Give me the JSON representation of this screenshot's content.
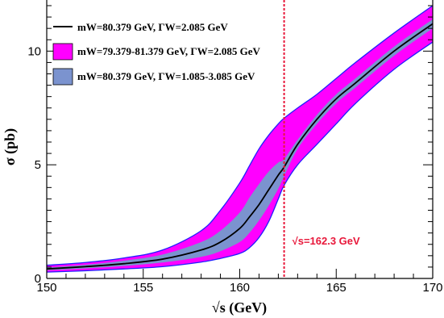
{
  "chart_data": {
    "type": "line",
    "xlabel": "√s (GeV)",
    "ylabel": "σ (pb)",
    "xlim": [
      150,
      170
    ],
    "ylim": [
      0,
      12
    ],
    "x_ticks": [
      150,
      155,
      160,
      165,
      170
    ],
    "y_ticks": [
      0,
      5,
      10
    ],
    "grid": false,
    "legend_position": "top-left",
    "colors": {
      "central_line": "#000000",
      "mass_band": "#ff00ff",
      "width_band": "#7b93cf",
      "band_edge": "#1f1fff",
      "annotation": "#e8173a"
    },
    "x": [
      150,
      152,
      154,
      156,
      158,
      159,
      160,
      160.5,
      161,
      161.5,
      162,
      162.3,
      163,
      164,
      165,
      166,
      168,
      170
    ],
    "series": [
      {
        "name": "mW=80.379 GeV,  ΓW=2.085 GeV",
        "values": [
          0.42,
          0.52,
          0.65,
          0.85,
          1.25,
          1.6,
          2.2,
          2.7,
          3.25,
          3.9,
          4.55,
          4.9,
          5.9,
          7.0,
          7.9,
          8.6,
          10.0,
          11.2
        ]
      },
      {
        "name": "mW=79.379-81.379 GeV,  ΓW=2.085 GeV (upper)",
        "values": [
          0.58,
          0.7,
          0.9,
          1.25,
          2.1,
          3.0,
          4.2,
          4.95,
          5.7,
          6.3,
          6.8,
          7.05,
          7.5,
          8.1,
          8.8,
          9.5,
          10.8,
          12.0
        ]
      },
      {
        "name": "mW=79.379-81.379 GeV,  ΓW=2.085 GeV (lower)",
        "values": [
          0.28,
          0.34,
          0.42,
          0.52,
          0.72,
          0.88,
          1.1,
          1.35,
          1.8,
          2.5,
          3.5,
          4.1,
          5.0,
          5.9,
          6.8,
          7.7,
          9.2,
          10.4
        ]
      },
      {
        "name": "mW=80.379 GeV,  ΓW=1.085-3.085 GeV (upper)",
        "values": [
          0.48,
          0.6,
          0.78,
          1.05,
          1.6,
          2.1,
          2.9,
          3.55,
          4.15,
          4.7,
          5.1,
          5.25,
          6.1,
          7.2,
          8.1,
          8.8,
          10.2,
          11.4
        ]
      },
      {
        "name": "mW=80.379 GeV,  ΓW=1.085-3.085 GeV (lower)",
        "values": [
          0.36,
          0.44,
          0.55,
          0.7,
          0.95,
          1.2,
          1.6,
          2.0,
          2.55,
          3.2,
          3.95,
          4.5,
          5.7,
          6.8,
          7.7,
          8.4,
          9.8,
          11.0
        ]
      }
    ],
    "vertical_line": {
      "x": 162.3,
      "label": "√s=162.3 GeV"
    },
    "legend": [
      {
        "label": "mW=80.379 GeV,  ΓW=2.085 GeV",
        "kind": "line"
      },
      {
        "label": "mW=79.379-81.379 GeV,  ΓW=2.085 GeV",
        "kind": "box-magenta"
      },
      {
        "label": "mW=80.379 GeV,  ΓW=1.085-3.085 GeV",
        "kind": "box-blue"
      }
    ]
  }
}
